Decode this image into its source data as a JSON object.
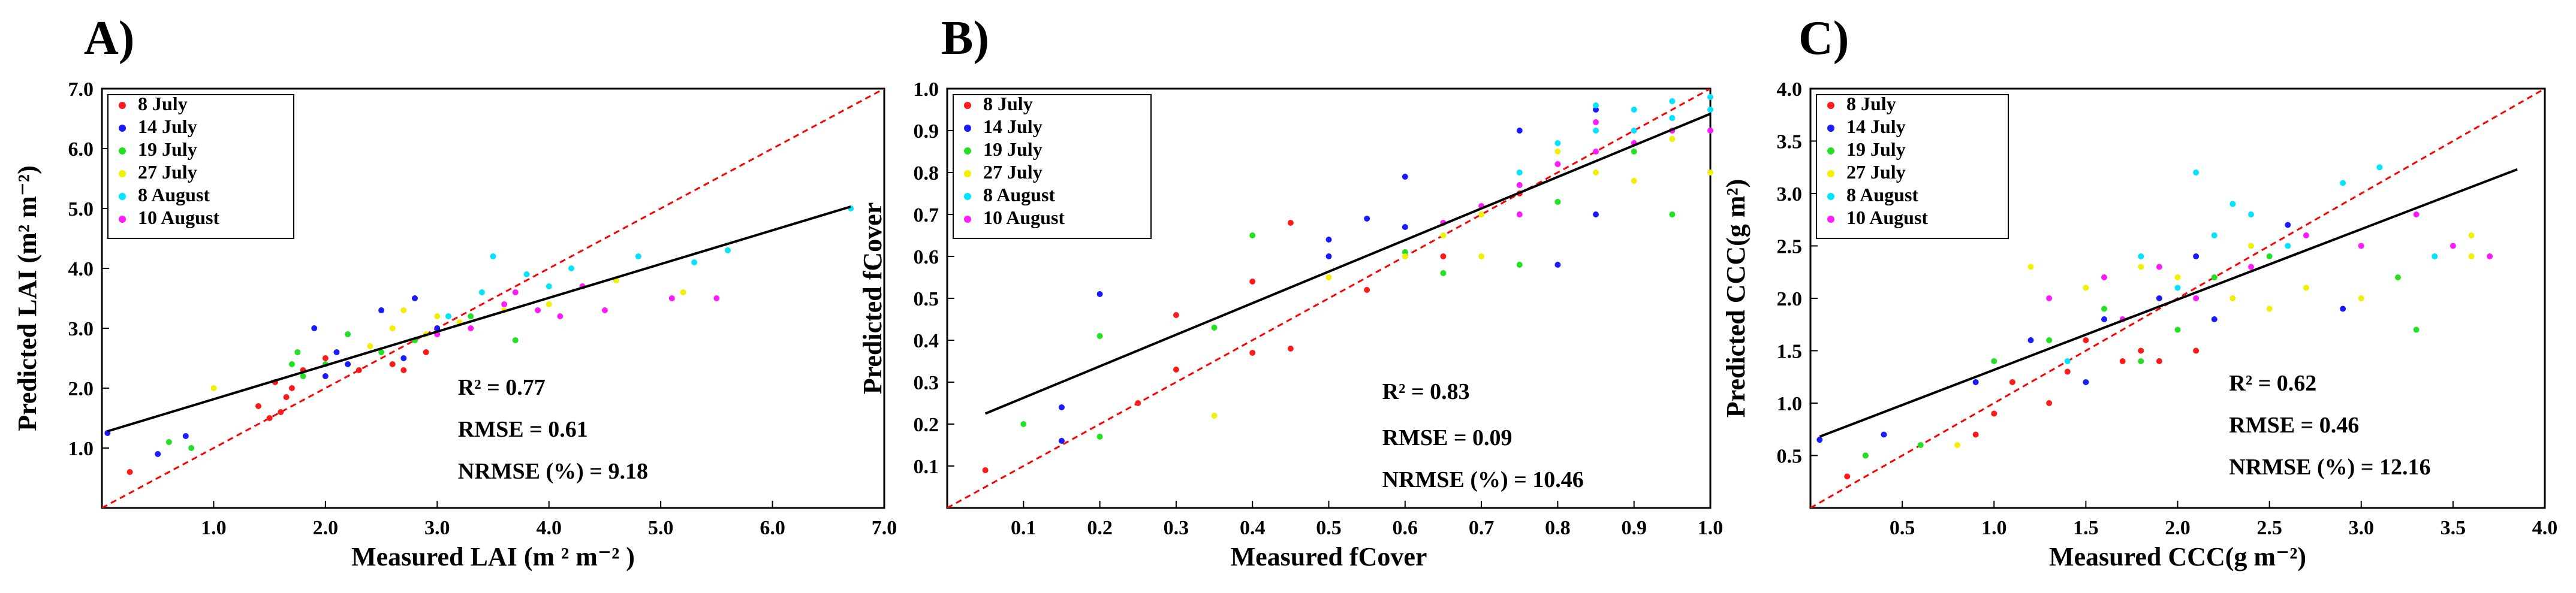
{
  "figure": {
    "dates": [
      "8 July",
      "14 July",
      "19 July",
      "27 July",
      "8 August",
      "10 August"
    ],
    "date_colors": [
      "#ff1a1a",
      "#1a1aff",
      "#22e022",
      "#f0f000",
      "#00e5ff",
      "#ff1aff"
    ],
    "one_to_one_color": "#ff0000",
    "fit_color": "#000000"
  },
  "chart_data": [
    {
      "type": "scatter",
      "panel_label": "A)",
      "xlabel": "Measured LAI (m ² m⁻² )",
      "ylabel": "Predicted LAI (m² m⁻²)",
      "xlim": [
        0,
        7
      ],
      "ylim": [
        0,
        7
      ],
      "x_ticks": [
        "1.0",
        "2.0",
        "3.0",
        "4.0",
        "5.0",
        "6.0",
        "7.0"
      ],
      "y_ticks": [
        "1.0",
        "2.0",
        "3.0",
        "4.0",
        "5.0",
        "6.0",
        "7.0"
      ],
      "legend": [
        "8 July",
        "14 July",
        "19 July",
        "27 July",
        "8 August",
        "10 August"
      ],
      "stats": [
        "R² = 0.77",
        "RMSE = 0.61",
        "NRMSE (%) = 9.18"
      ],
      "fit_line": {
        "x": [
          0.05,
          6.7
        ],
        "y": [
          1.28,
          5.03
        ]
      },
      "one_to_one": true,
      "series": [
        {
          "name": "8 July",
          "points": [
            [
              0.25,
              0.6
            ],
            [
              1.5,
              1.5
            ],
            [
              1.6,
              1.6
            ],
            [
              1.7,
              2.0
            ],
            [
              1.55,
              2.1
            ],
            [
              1.8,
              2.3
            ],
            [
              2.3,
              2.3
            ],
            [
              2.6,
              2.4
            ],
            [
              2.7,
              2.3
            ],
            [
              1.65,
              1.85
            ],
            [
              2.0,
              2.5
            ],
            [
              2.9,
              2.6
            ],
            [
              1.4,
              1.7
            ]
          ]
        },
        {
          "name": "14 July",
          "points": [
            [
              0.05,
              1.25
            ],
            [
              0.5,
              0.9
            ],
            [
              0.75,
              1.2
            ],
            [
              1.9,
              3.0
            ],
            [
              2.0,
              2.2
            ],
            [
              2.1,
              2.6
            ],
            [
              2.5,
              3.3
            ],
            [
              2.8,
              3.5
            ],
            [
              3.0,
              3.0
            ],
            [
              2.7,
              2.5
            ],
            [
              2.2,
              2.4
            ]
          ]
        },
        {
          "name": "19 July",
          "points": [
            [
              0.6,
              1.1
            ],
            [
              0.8,
              1.0
            ],
            [
              1.7,
              2.4
            ],
            [
              1.75,
              2.6
            ],
            [
              2.0,
              2.4
            ],
            [
              2.2,
              2.9
            ],
            [
              2.8,
              2.8
            ],
            [
              3.3,
              3.2
            ],
            [
              3.7,
              2.8
            ],
            [
              1.8,
              2.2
            ],
            [
              2.5,
              2.6
            ]
          ]
        },
        {
          "name": "27 July",
          "points": [
            [
              1.0,
              2.0
            ],
            [
              2.4,
              2.7
            ],
            [
              2.6,
              3.0
            ],
            [
              2.9,
              2.9
            ],
            [
              3.2,
              3.1
            ],
            [
              3.6,
              3.3
            ],
            [
              4.0,
              3.4
            ],
            [
              4.6,
              3.8
            ],
            [
              5.2,
              3.6
            ],
            [
              3.0,
              3.2
            ],
            [
              2.7,
              3.3
            ]
          ]
        },
        {
          "name": "8 August",
          "points": [
            [
              3.1,
              3.2
            ],
            [
              3.5,
              4.2
            ],
            [
              3.8,
              3.9
            ],
            [
              4.2,
              4.0
            ],
            [
              4.8,
              4.2
            ],
            [
              5.3,
              4.1
            ],
            [
              5.6,
              4.3
            ],
            [
              6.7,
              5.0
            ],
            [
              3.4,
              3.6
            ],
            [
              4.0,
              3.7
            ]
          ]
        },
        {
          "name": "10 August",
          "points": [
            [
              3.3,
              3.0
            ],
            [
              3.6,
              3.4
            ],
            [
              3.9,
              3.3
            ],
            [
              4.3,
              3.7
            ],
            [
              4.5,
              3.3
            ],
            [
              5.1,
              3.5
            ],
            [
              5.5,
              3.5
            ],
            [
              3.0,
              2.9
            ],
            [
              3.7,
              3.6
            ],
            [
              4.1,
              3.2
            ]
          ]
        }
      ]
    },
    {
      "type": "scatter",
      "panel_label": "B)",
      "xlabel": "Measured fCover",
      "ylabel": "Predicted fCover",
      "xlim": [
        0,
        1
      ],
      "ylim": [
        0,
        1
      ],
      "x_ticks": [
        "0.1",
        "0.2",
        "0.3",
        "0.4",
        "0.5",
        "0.6",
        "0.7",
        "0.8",
        "0.9",
        "1.0"
      ],
      "y_ticks": [
        "0.1",
        "0.2",
        "0.3",
        "0.4",
        "0.5",
        "0.6",
        "0.7",
        "0.8",
        "0.9",
        "1.0"
      ],
      "legend": [
        "8 July",
        "14 July",
        "19 July",
        "27 July",
        "8 August",
        "10 August"
      ],
      "stats": [
        "R² = 0.83",
        "RMSE = 0.09",
        "NRMSE (%) = 10.46"
      ],
      "fit_line": {
        "x": [
          0.05,
          1.0
        ],
        "y": [
          0.225,
          0.94
        ]
      },
      "one_to_one": true,
      "series": [
        {
          "name": "8 July",
          "points": [
            [
              0.05,
              0.09
            ],
            [
              0.25,
              0.25
            ],
            [
              0.3,
              0.46
            ],
            [
              0.3,
              0.33
            ],
            [
              0.4,
              0.37
            ],
            [
              0.4,
              0.54
            ],
            [
              0.45,
              0.38
            ],
            [
              0.45,
              0.68
            ],
            [
              0.55,
              0.52
            ],
            [
              0.65,
              0.6
            ],
            [
              0.75,
              0.75
            ]
          ]
        },
        {
          "name": "14 July",
          "points": [
            [
              0.15,
              0.16
            ],
            [
              0.15,
              0.24
            ],
            [
              0.2,
              0.51
            ],
            [
              0.5,
              0.6
            ],
            [
              0.5,
              0.64
            ],
            [
              0.55,
              0.69
            ],
            [
              0.6,
              0.79
            ],
            [
              0.6,
              0.67
            ],
            [
              0.75,
              0.9
            ],
            [
              0.8,
              0.58
            ],
            [
              0.85,
              0.7
            ],
            [
              0.85,
              0.95
            ]
          ]
        },
        {
          "name": "19 July",
          "points": [
            [
              0.1,
              0.2
            ],
            [
              0.2,
              0.17
            ],
            [
              0.2,
              0.41
            ],
            [
              0.25,
              0.65
            ],
            [
              0.35,
              0.43
            ],
            [
              0.4,
              0.65
            ],
            [
              0.6,
              0.61
            ],
            [
              0.65,
              0.56
            ],
            [
              0.75,
              0.58
            ],
            [
              0.8,
              0.73
            ],
            [
              0.9,
              0.85
            ],
            [
              0.95,
              0.7
            ]
          ]
        },
        {
          "name": "27 July",
          "points": [
            [
              0.35,
              0.22
            ],
            [
              0.5,
              0.55
            ],
            [
              0.6,
              0.6
            ],
            [
              0.65,
              0.65
            ],
            [
              0.7,
              0.7
            ],
            [
              0.7,
              0.6
            ],
            [
              0.75,
              0.8
            ],
            [
              0.8,
              0.85
            ],
            [
              0.85,
              0.8
            ],
            [
              0.9,
              0.78
            ],
            [
              0.95,
              0.88
            ],
            [
              1.0,
              0.8
            ]
          ]
        },
        {
          "name": "8 August",
          "points": [
            [
              0.75,
              0.8
            ],
            [
              0.8,
              0.87
            ],
            [
              0.85,
              0.9
            ],
            [
              0.85,
              0.96
            ],
            [
              0.9,
              0.9
            ],
            [
              0.95,
              0.93
            ],
            [
              0.95,
              0.97
            ],
            [
              1.0,
              0.95
            ],
            [
              1.0,
              0.98
            ],
            [
              0.9,
              0.95
            ]
          ]
        },
        {
          "name": "10 August",
          "points": [
            [
              0.65,
              0.68
            ],
            [
              0.7,
              0.72
            ],
            [
              0.75,
              0.77
            ],
            [
              0.8,
              0.82
            ],
            [
              0.85,
              0.85
            ],
            [
              0.9,
              0.87
            ],
            [
              0.95,
              0.9
            ],
            [
              1.0,
              0.9
            ],
            [
              0.75,
              0.7
            ],
            [
              0.85,
              0.92
            ]
          ]
        }
      ]
    },
    {
      "type": "scatter",
      "panel_label": "C)",
      "xlabel": "Measured CCC(g m⁻²)",
      "ylabel": "Predicted CCC(g m²)",
      "xlim": [
        0,
        4
      ],
      "ylim": [
        0,
        4
      ],
      "x_ticks": [
        "0.5",
        "1.0",
        "1.5",
        "2.0",
        "2.5",
        "3.0",
        "3.5",
        "4.0"
      ],
      "y_ticks": [
        "0.5",
        "1.0",
        "1.5",
        "2.0",
        "2.5",
        "3.0",
        "3.5",
        "4.0"
      ],
      "legend": [
        "8 July",
        "14 July",
        "19 July",
        "27 July",
        "8 August",
        "10 August"
      ],
      "stats": [
        "R² = 0.62",
        "RMSE = 0.46",
        "NRMSE (%) = 12.16"
      ],
      "fit_line": {
        "x": [
          0.05,
          3.85
        ],
        "y": [
          0.68,
          3.23
        ]
      },
      "one_to_one": true,
      "series": [
        {
          "name": "8 July",
          "points": [
            [
              0.2,
              0.3
            ],
            [
              0.3,
              0.5
            ],
            [
              0.9,
              0.7
            ],
            [
              1.0,
              0.9
            ],
            [
              1.1,
              1.2
            ],
            [
              1.3,
              1.0
            ],
            [
              1.4,
              1.3
            ],
            [
              1.5,
              1.6
            ],
            [
              1.7,
              1.4
            ],
            [
              1.8,
              1.5
            ],
            [
              2.1,
              1.5
            ],
            [
              1.9,
              1.4
            ]
          ]
        },
        {
          "name": "14 July",
          "points": [
            [
              0.05,
              0.65
            ],
            [
              0.4,
              0.7
            ],
            [
              0.9,
              1.2
            ],
            [
              1.2,
              1.6
            ],
            [
              1.5,
              1.2
            ],
            [
              1.6,
              1.8
            ],
            [
              1.9,
              2.0
            ],
            [
              2.1,
              2.4
            ],
            [
              2.2,
              1.8
            ],
            [
              2.9,
              1.9
            ],
            [
              2.6,
              2.7
            ]
          ]
        },
        {
          "name": "19 July",
          "points": [
            [
              0.3,
              0.5
            ],
            [
              0.6,
              0.6
            ],
            [
              1.0,
              1.4
            ],
            [
              1.3,
              1.6
            ],
            [
              1.6,
              1.9
            ],
            [
              2.0,
              1.7
            ],
            [
              2.2,
              2.2
            ],
            [
              2.5,
              2.4
            ],
            [
              3.2,
              2.2
            ],
            [
              3.3,
              1.7
            ],
            [
              1.8,
              1.4
            ]
          ]
        },
        {
          "name": "27 July",
          "points": [
            [
              0.8,
              0.6
            ],
            [
              1.2,
              2.3
            ],
            [
              1.5,
              2.1
            ],
            [
              1.8,
              2.3
            ],
            [
              2.0,
              2.2
            ],
            [
              2.3,
              2.0
            ],
            [
              2.5,
              1.9
            ],
            [
              2.7,
              2.1
            ],
            [
              3.0,
              2.0
            ],
            [
              3.6,
              2.6
            ],
            [
              3.6,
              2.4
            ],
            [
              2.4,
              2.5
            ]
          ]
        },
        {
          "name": "8 August",
          "points": [
            [
              1.4,
              1.4
            ],
            [
              1.8,
              2.4
            ],
            [
              2.0,
              2.1
            ],
            [
              2.1,
              3.2
            ],
            [
              2.3,
              2.9
            ],
            [
              2.4,
              2.8
            ],
            [
              2.6,
              2.5
            ],
            [
              2.9,
              3.1
            ],
            [
              3.1,
              3.25
            ],
            [
              3.4,
              2.4
            ],
            [
              2.2,
              2.6
            ]
          ]
        },
        {
          "name": "10 August",
          "points": [
            [
              1.3,
              2.0
            ],
            [
              1.6,
              2.2
            ],
            [
              1.9,
              2.3
            ],
            [
              2.1,
              2.0
            ],
            [
              2.4,
              2.3
            ],
            [
              2.7,
              2.6
            ],
            [
              3.0,
              2.5
            ],
            [
              3.3,
              2.8
            ],
            [
              3.5,
              2.5
            ],
            [
              3.7,
              2.4
            ],
            [
              1.7,
              1.8
            ]
          ]
        }
      ]
    }
  ]
}
